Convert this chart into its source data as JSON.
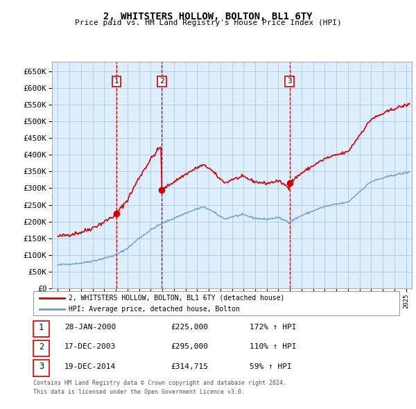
{
  "title": "2, WHITSTERS HOLLOW, BOLTON, BL1 6TY",
  "subtitle": "Price paid vs. HM Land Registry's House Price Index (HPI)",
  "legend_line1": "2, WHITSTERS HOLLOW, BOLTON, BL1 6TY (detached house)",
  "legend_line2": "HPI: Average price, detached house, Bolton",
  "footer1": "Contains HM Land Registry data © Crown copyright and database right 2024.",
  "footer2": "This data is licensed under the Open Government Licence v3.0.",
  "transactions": [
    {
      "num": 1,
      "date": "28-JAN-2000",
      "price": "£225,000",
      "hpi": "172% ↑ HPI",
      "year": 2000.07
    },
    {
      "num": 2,
      "date": "17-DEC-2003",
      "price": "£295,000",
      "hpi": "110% ↑ HPI",
      "year": 2003.96
    },
    {
      "num": 3,
      "date": "19-DEC-2014",
      "price": "£314,715",
      "hpi": "59% ↑ HPI",
      "year": 2014.96
    }
  ],
  "transaction_prices": [
    225000,
    295000,
    314715
  ],
  "ylim": [
    0,
    680000
  ],
  "yticks": [
    0,
    50000,
    100000,
    150000,
    200000,
    250000,
    300000,
    350000,
    400000,
    450000,
    500000,
    550000,
    600000,
    650000
  ],
  "plot_bg": "#ddeeff",
  "red_color": "#cc0000",
  "blue_color": "#6699cc",
  "vline_color": "#cc0000",
  "grid_color": "#aabbdd"
}
